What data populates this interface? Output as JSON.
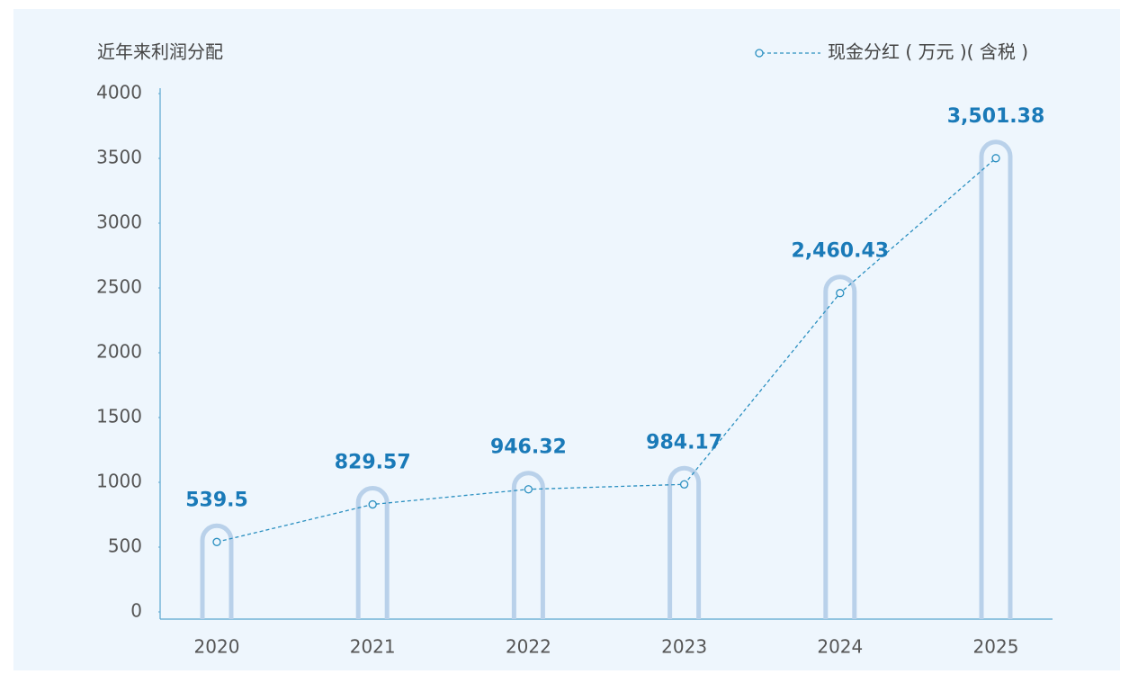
{
  "chart_data": {
    "type": "bar-line",
    "title": "近年来利润分配",
    "categories": [
      "2020",
      "2021",
      "2022",
      "2023",
      "2024",
      "2025"
    ],
    "series": [
      {
        "name": "现金分红 ( 万元 )( 含税 )",
        "color": "#2a8fc0",
        "values": [
          539.5,
          829.57,
          946.32,
          984.17,
          2460.43,
          3501.38
        ],
        "value_labels": [
          "539.5",
          "829.57",
          "946.32",
          "984.17",
          "2,460.43",
          "3,501.38"
        ]
      }
    ],
    "bar_color": "#b9d1ea",
    "ylim": [
      0,
      4000
    ],
    "yticks": [
      0,
      500,
      1000,
      1500,
      2000,
      2500,
      3000,
      3500,
      4000
    ],
    "grid": false,
    "legend": "top-right"
  }
}
